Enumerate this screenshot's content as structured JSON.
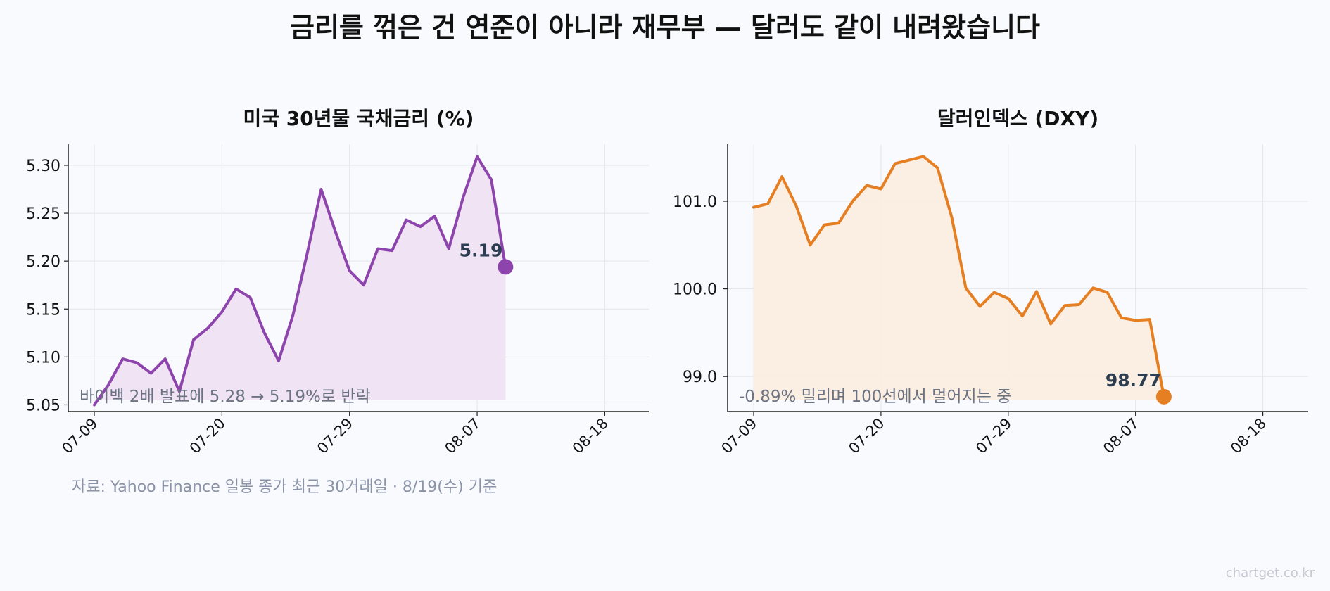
{
  "title": "금리를 꺾은 건 연준이 아니라 재무부 — 달러도 같이 내려왔습니다",
  "source_note": "자료: Yahoo Finance 일봉 종가 최근 30거래일 · 8/19(수) 기준",
  "watermark": "chartget.co.kr",
  "chart_data": [
    {
      "type": "area",
      "title": "미국 30년물 국채금리 (%)",
      "xlabel": "",
      "ylabel": "",
      "color": "#8e44ad",
      "fill_color": "#efe3f3",
      "x_tick_labels": [
        "07-09",
        "07-20",
        "07-29",
        "08-07",
        "08-18"
      ],
      "x_tick_index": [
        0,
        9,
        18,
        27,
        36
      ],
      "y_ticks": [
        5.05,
        5.1,
        5.15,
        5.2,
        5.25,
        5.3
      ],
      "y_tick_labels": [
        "5.05",
        "5.10",
        "5.15",
        "5.20",
        "5.25",
        "5.30"
      ],
      "ylim": [
        5.043,
        5.322
      ],
      "grid": true,
      "values": [
        5.05,
        5.071,
        5.098,
        5.094,
        5.083,
        5.098,
        5.064,
        5.118,
        5.13,
        5.147,
        5.171,
        5.162,
        5.125,
        5.096,
        5.143,
        5.207,
        5.275,
        5.231,
        5.19,
        5.175,
        5.213,
        5.211,
        5.243,
        5.236,
        5.247,
        5.213,
        5.266,
        5.309,
        5.285,
        5.194
      ],
      "last_label": "5.19",
      "annotation": "바이백 2배 발표에 5.28 → 5.19%로 반락"
    },
    {
      "type": "area",
      "title": "달러인덱스 (DXY)",
      "xlabel": "",
      "ylabel": "",
      "color": "#e67e22",
      "fill_color": "#fbeee1",
      "x_tick_labels": [
        "07-09",
        "07-20",
        "07-29",
        "08-07",
        "08-18"
      ],
      "x_tick_index": [
        0,
        9,
        18,
        27,
        36
      ],
      "y_ticks": [
        99.0,
        100.0,
        101.0
      ],
      "y_tick_labels": [
        "99.0",
        "100.0",
        "101.0"
      ],
      "ylim": [
        98.6,
        101.65
      ],
      "grid": true,
      "values": [
        100.93,
        100.97,
        101.28,
        100.95,
        100.5,
        100.73,
        100.75,
        101.0,
        101.18,
        101.14,
        101.43,
        101.47,
        101.51,
        101.38,
        100.82,
        100.01,
        99.8,
        99.96,
        99.89,
        99.69,
        99.97,
        99.6,
        99.81,
        99.82,
        100.01,
        99.96,
        99.67,
        99.64,
        99.65,
        98.77
      ],
      "last_label": "98.77",
      "annotation": "-0.89% 밀리며 100선에서 멀어지는 중"
    }
  ]
}
